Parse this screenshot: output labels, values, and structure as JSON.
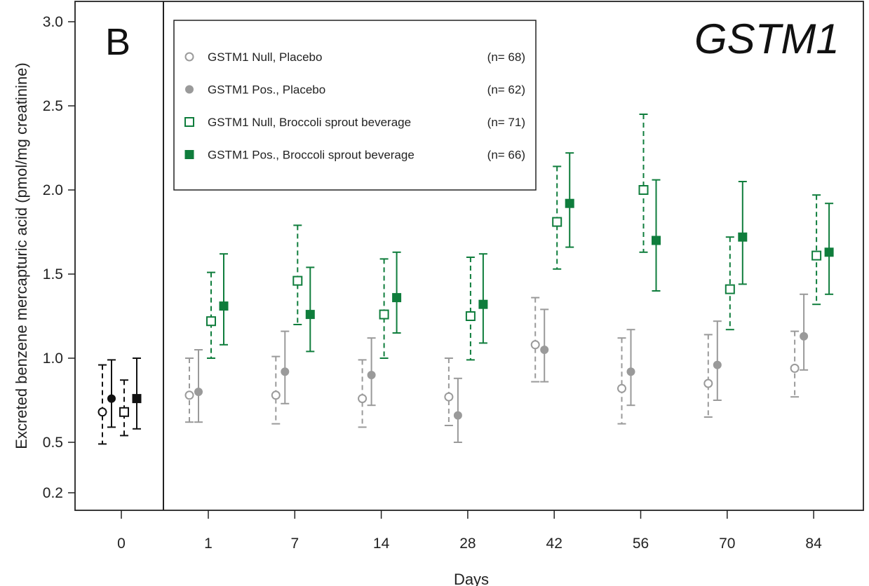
{
  "panel_label": "B",
  "gene_title": "GSTM1",
  "colors": {
    "baseline": "#111111",
    "placebo": "#9a9a9a",
    "broccoli": "#0f7d3c",
    "axis": "#222222"
  },
  "chart_data": {
    "type": "scatter",
    "xlabel": "Days",
    "ylabel": "Excreted benzene mercapturic acid (pmol/mg creatinine)",
    "categories": [
      "0",
      "1",
      "7",
      "14",
      "28",
      "42",
      "56",
      "70",
      "84"
    ],
    "y_ticks": [
      "0.2",
      "0.5",
      "1.0",
      "1.5",
      "2.0",
      "2.5",
      "3.0"
    ],
    "y_tick_values": [
      0.2,
      0.5,
      1.0,
      1.5,
      2.0,
      2.5,
      3.0
    ],
    "ylim": [
      0.1,
      3.1
    ],
    "legend_position": "top-left of treatment panel",
    "series": [
      {
        "name": "GSTM1 Null, Placebo",
        "n": "(n= 68)",
        "marker": "open-circle",
        "line": "dashed",
        "values": [
          0.68,
          0.78,
          0.78,
          0.76,
          0.77,
          1.08,
          0.82,
          0.85,
          0.94
        ],
        "lower": [
          0.49,
          0.62,
          0.61,
          0.59,
          0.6,
          0.86,
          0.61,
          0.65,
          0.77
        ],
        "upper": [
          0.96,
          1.0,
          1.01,
          0.99,
          1.0,
          1.36,
          1.12,
          1.14,
          1.16
        ]
      },
      {
        "name": "GSTM1 Pos., Placebo",
        "n": "(n= 62)",
        "marker": "filled-circle",
        "line": "solid",
        "values": [
          0.76,
          0.8,
          0.92,
          0.9,
          0.66,
          1.05,
          0.92,
          0.96,
          1.13
        ],
        "lower": [
          0.59,
          0.62,
          0.73,
          0.72,
          0.5,
          0.86,
          0.72,
          0.75,
          0.93
        ],
        "upper": [
          0.99,
          1.05,
          1.16,
          1.12,
          0.88,
          1.29,
          1.17,
          1.22,
          1.38
        ]
      },
      {
        "name": "GSTM1 Null, Broccoli sprout beverage",
        "n": "(n= 71)",
        "marker": "open-square",
        "line": "dashed",
        "values": [
          0.68,
          1.22,
          1.46,
          1.26,
          1.25,
          1.81,
          2.0,
          1.41,
          1.61
        ],
        "lower": [
          0.54,
          1.0,
          1.2,
          1.0,
          0.99,
          1.53,
          1.63,
          1.17,
          1.32
        ],
        "upper": [
          0.87,
          1.51,
          1.79,
          1.59,
          1.6,
          2.14,
          2.45,
          1.72,
          1.97
        ]
      },
      {
        "name": "GSTM1 Pos., Broccoli sprout beverage",
        "n": "(n= 66)",
        "marker": "filled-square",
        "line": "solid",
        "values": [
          0.76,
          1.31,
          1.26,
          1.36,
          1.32,
          1.92,
          1.7,
          1.72,
          1.63
        ],
        "lower": [
          0.58,
          1.08,
          1.04,
          1.15,
          1.09,
          1.66,
          1.4,
          1.44,
          1.38
        ],
        "upper": [
          1.0,
          1.62,
          1.54,
          1.63,
          1.62,
          2.22,
          2.06,
          2.05,
          1.92
        ]
      }
    ]
  }
}
